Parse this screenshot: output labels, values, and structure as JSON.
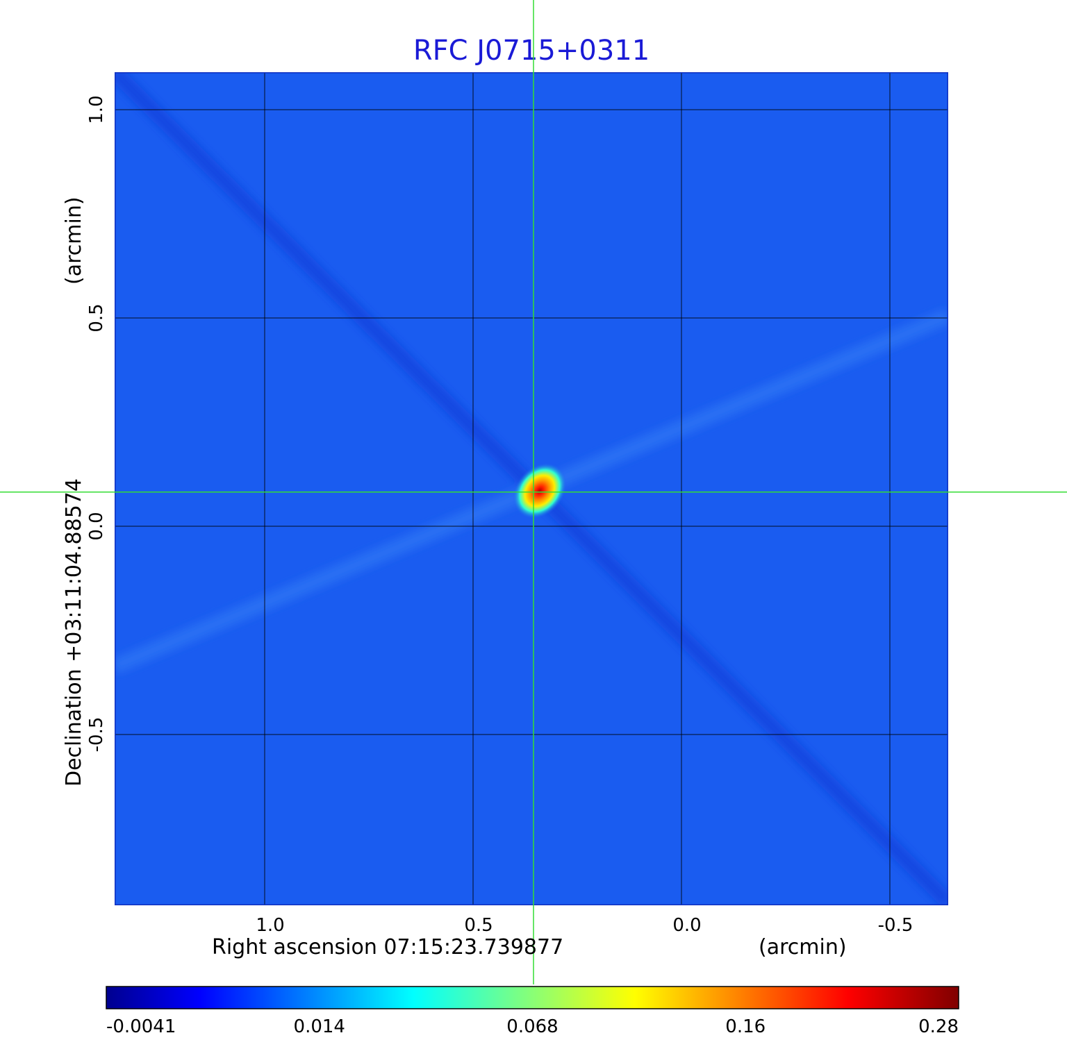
{
  "chart_data": {
    "type": "heatmap",
    "title": "RFC J0715+0311",
    "xlabel": "Right ascension  07:15:23.739877",
    "xlabel_unit": "(arcmin)",
    "ylabel": "Declination  +03:11:04.88574",
    "ylabel_unit": "(arcmin)",
    "x_ticks": [
      {
        "value": 1.0,
        "label": "1.0"
      },
      {
        "value": 0.5,
        "label": "0.5"
      },
      {
        "value": 0.0,
        "label": "0.0"
      },
      {
        "value": -0.5,
        "label": "-0.5"
      }
    ],
    "y_ticks": [
      {
        "value": 1.0,
        "label": "1.0"
      },
      {
        "value": 0.5,
        "label": "0.5"
      },
      {
        "value": 0.0,
        "label": "0.0"
      },
      {
        "value": -0.5,
        "label": "-0.5"
      }
    ],
    "xlim": [
      1.36,
      -0.64
    ],
    "ylim": [
      -0.91,
      1.09
    ],
    "grid": true,
    "crosshair": {
      "x": 0.355,
      "y": 0.082,
      "color": "#33dd33"
    },
    "peak": {
      "x": 0.34,
      "y": 0.085,
      "value": 0.28
    },
    "colorbar": {
      "min": -0.0041,
      "max": 0.28,
      "colormap": "jet",
      "ticks": [
        {
          "fraction": 0.0,
          "label": "-0.0041"
        },
        {
          "fraction": 0.25,
          "label": "0.014"
        },
        {
          "fraction": 0.5,
          "label": "0.068"
        },
        {
          "fraction": 0.75,
          "label": "0.16"
        },
        {
          "fraction": 1.0,
          "label": "0.28"
        }
      ]
    },
    "background_color": "#1a5cf0",
    "grid_color": "#000000"
  }
}
